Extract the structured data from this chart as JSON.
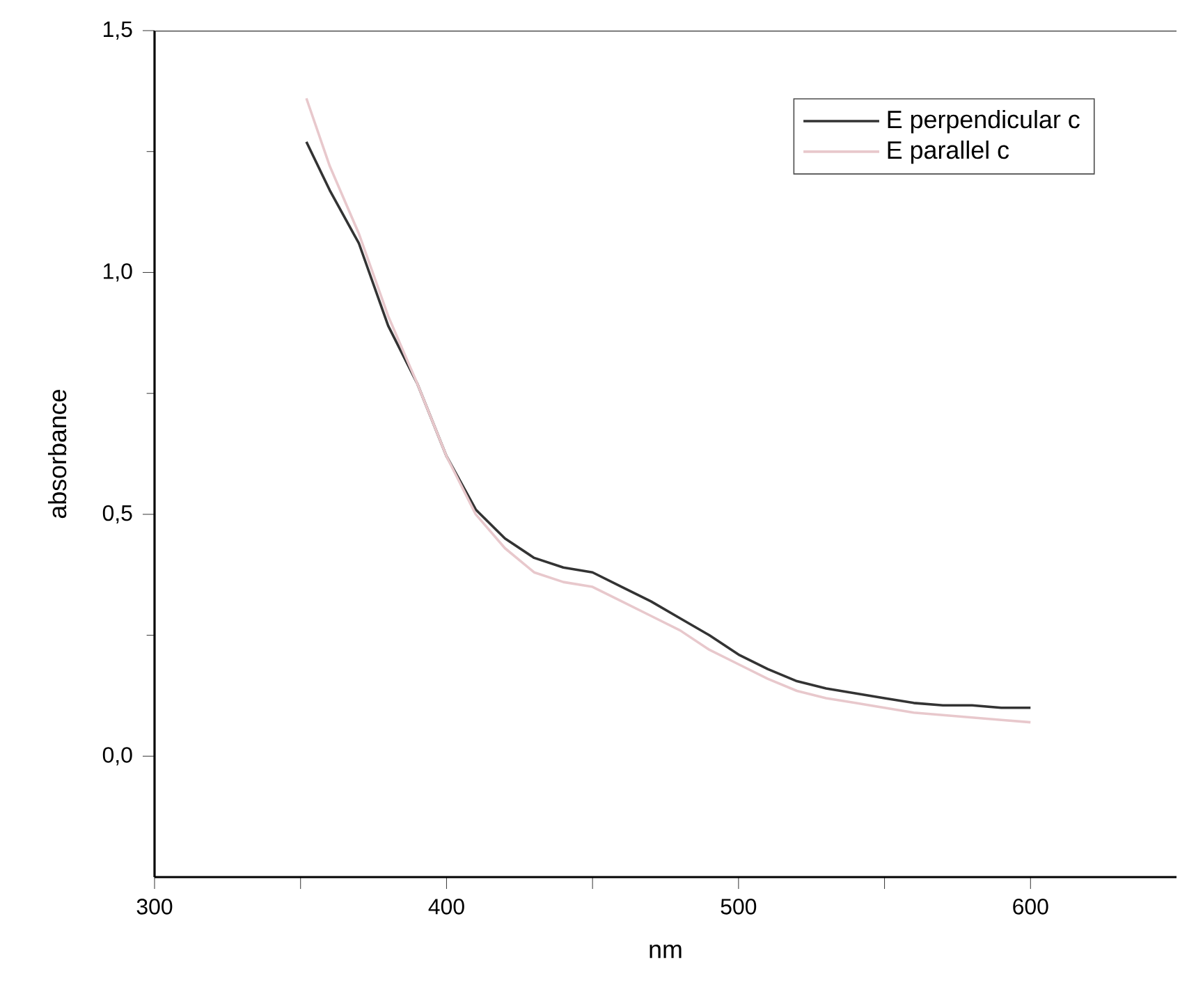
{
  "chart_data": {
    "type": "line",
    "xlabel": "nm",
    "ylabel": "absorbance",
    "xlim": [
      300,
      650
    ],
    "ylim": [
      -0.25,
      1.5
    ],
    "xticks": [
      300,
      {
        "value": 350,
        "label": null
      },
      400,
      {
        "value": 450,
        "label": null
      },
      500,
      {
        "value": 550,
        "label": null
      },
      600
    ],
    "yticks": [
      {
        "value": 0,
        "label": "0,0"
      },
      {
        "value": 0.5,
        "label": "0,5"
      },
      {
        "value": 1.0,
        "label": "1,0"
      },
      {
        "value": 1.5,
        "label": "1,5"
      }
    ],
    "legend": "top right",
    "grid": false,
    "marker": "none",
    "line_style": "solid",
    "x": [
      352,
      360,
      370,
      380,
      390,
      400,
      410,
      420,
      430,
      440,
      450,
      460,
      470,
      480,
      490,
      500,
      510,
      520,
      530,
      540,
      550,
      560,
      570,
      580,
      590,
      600
    ],
    "series": [
      {
        "name": "E perpendicular c",
        "color": "#333333",
        "values": [
          1.27,
          1.17,
          1.06,
          0.89,
          0.77,
          0.62,
          0.51,
          0.45,
          0.41,
          0.39,
          0.38,
          0.35,
          0.32,
          0.285,
          0.25,
          0.21,
          0.18,
          0.155,
          0.14,
          0.13,
          0.12,
          0.11,
          0.105,
          0.105,
          0.1,
          0.1
        ]
      },
      {
        "name": "E parallel c",
        "color": "#e8c8cc",
        "values": [
          1.36,
          1.22,
          1.08,
          0.91,
          0.77,
          0.62,
          0.5,
          0.43,
          0.38,
          0.36,
          0.35,
          0.32,
          0.29,
          0.26,
          0.22,
          0.19,
          0.16,
          0.135,
          0.12,
          0.11,
          0.1,
          0.09,
          0.085,
          0.08,
          0.075,
          0.07
        ]
      }
    ]
  }
}
